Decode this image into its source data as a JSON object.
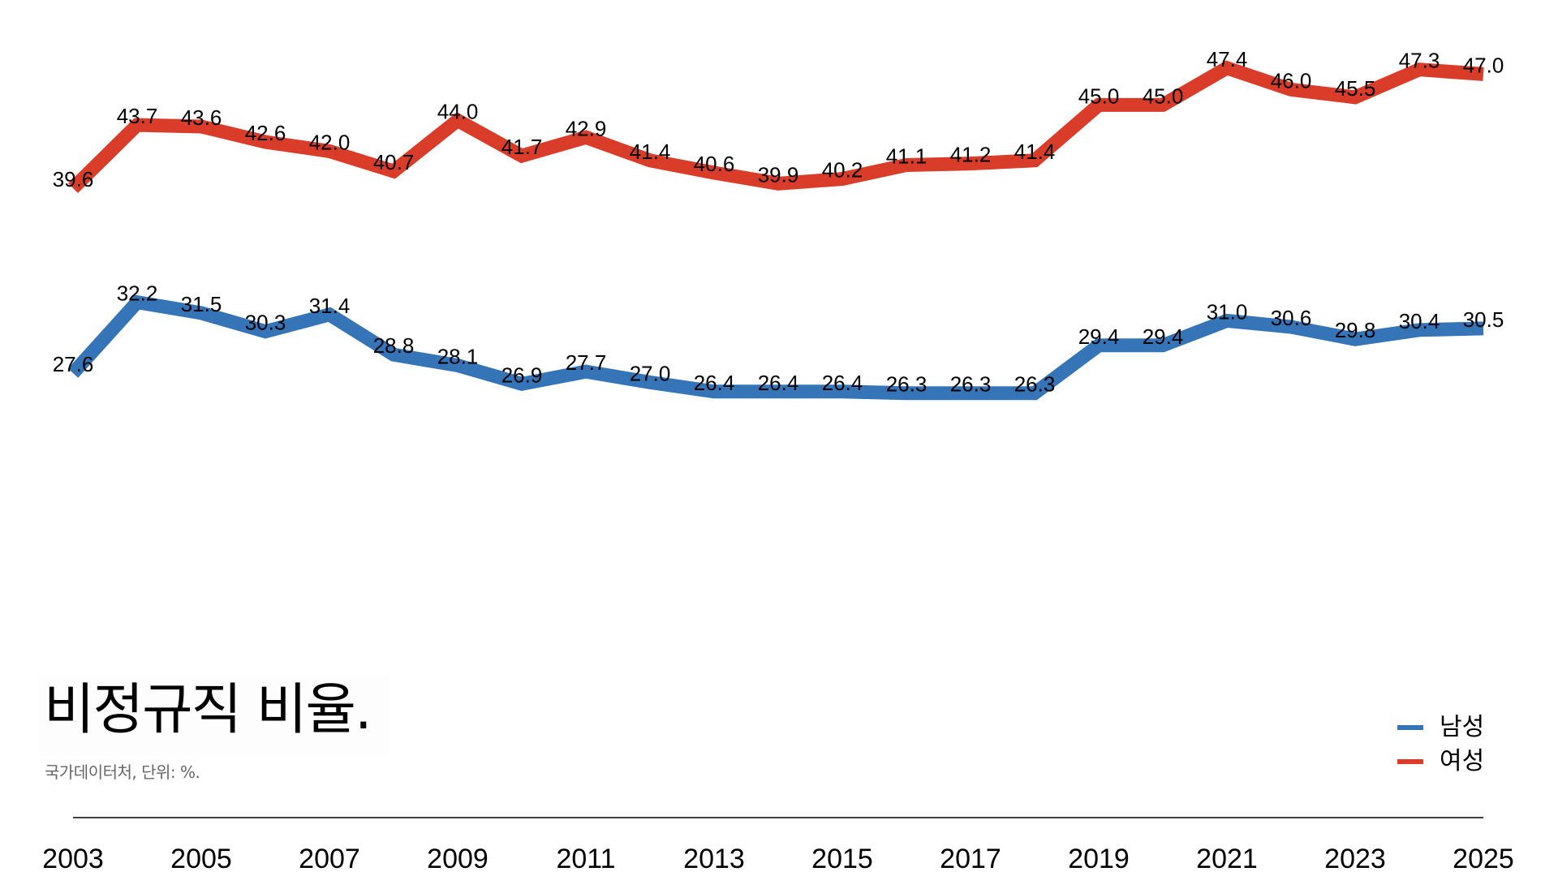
{
  "chart_data": {
    "type": "line",
    "title": "비정규직 비율.",
    "subtitle": "국가데이터처, 단위: %.",
    "xlabel": "",
    "ylabel": "",
    "x": [
      2003,
      2004,
      2005,
      2006,
      2007,
      2008,
      2009,
      2010,
      2011,
      2012,
      2013,
      2014,
      2015,
      2016,
      2017,
      2018,
      2019,
      2020,
      2021,
      2022,
      2023,
      2024,
      2025
    ],
    "x_tick_labels": [
      "2003",
      "2005",
      "2007",
      "2009",
      "2011",
      "2013",
      "2015",
      "2017",
      "2019",
      "2021",
      "2023",
      "2025"
    ],
    "series": [
      {
        "name": "남성",
        "color": "#3574B6",
        "values": [
          27.6,
          32.2,
          31.5,
          30.3,
          31.4,
          28.8,
          28.1,
          26.9,
          27.7,
          27.0,
          26.4,
          26.4,
          26.4,
          26.3,
          26.3,
          26.3,
          29.4,
          29.4,
          31.0,
          30.6,
          29.8,
          30.4,
          30.5
        ]
      },
      {
        "name": "여성",
        "color": "#D93C28",
        "values": [
          39.6,
          43.7,
          43.6,
          42.6,
          42.0,
          40.7,
          44.0,
          41.7,
          42.9,
          41.4,
          40.6,
          39.9,
          40.2,
          41.1,
          41.2,
          41.4,
          45.0,
          45.0,
          47.4,
          46.0,
          45.5,
          47.3,
          47.0
        ]
      }
    ],
    "data_labels": true,
    "grid": false,
    "y_axis_visible": false,
    "legend_position": "bottom-right"
  },
  "legend": [
    {
      "label": "남성",
      "color": "#3574B6"
    },
    {
      "label": "여성",
      "color": "#D93C28"
    }
  ]
}
